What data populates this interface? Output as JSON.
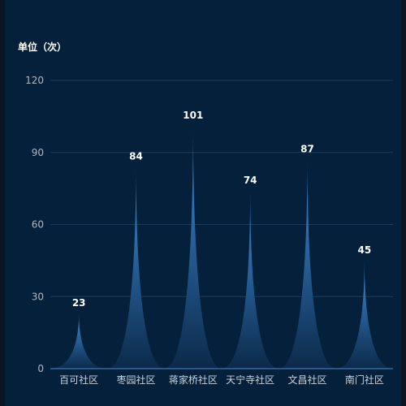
{
  "unit_label": "单位（次）",
  "colors": {
    "background": "#04203a",
    "grid": "#1b3d5e",
    "axis": "#3f8ed6",
    "bar_top": "#3f8fe0",
    "bar_bottom": "#0c2a4a"
  },
  "chart_data": {
    "type": "bar",
    "categories": [
      "百可社区",
      "枣园社区",
      "蒋家桥社区",
      "天宁寺社区",
      "文昌社区",
      "南门社区"
    ],
    "values": [
      23,
      84,
      101,
      74,
      87,
      45
    ],
    "ylabel": "单位（次）",
    "ylim": [
      0,
      120
    ],
    "yticks": [
      0,
      30,
      60,
      90,
      120
    ],
    "grid": true
  }
}
